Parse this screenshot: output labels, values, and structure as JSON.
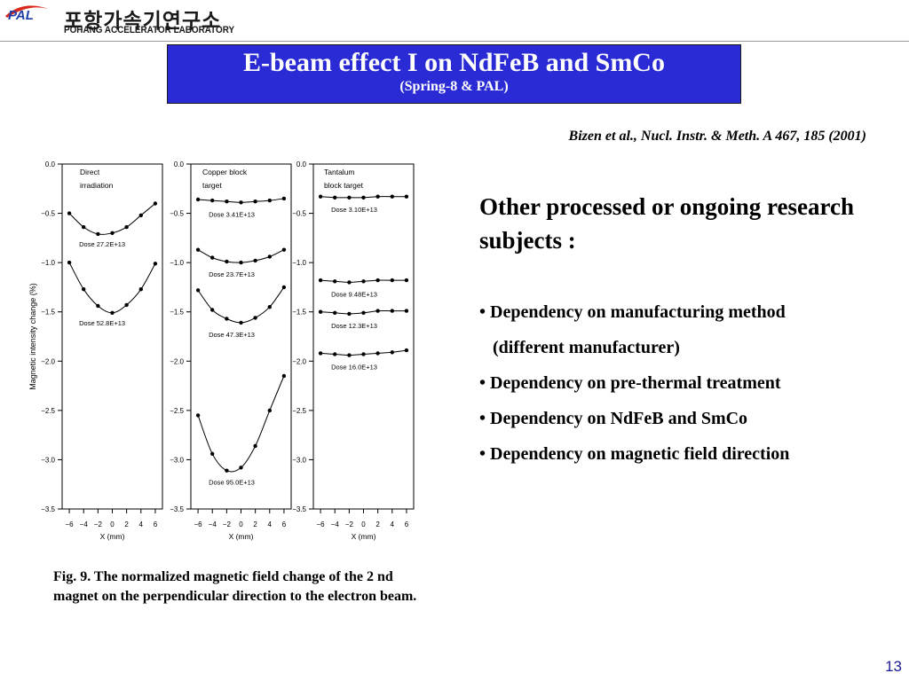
{
  "logo": {
    "mark": "PAL",
    "korean": "포항가속기연구소",
    "english": "POHANG ACCELERATOR LABORATORY"
  },
  "title": {
    "main": "E-beam effect I on NdFeB and SmCo",
    "sub": "(Spring-8 & PAL)"
  },
  "citation": "Bizen et al., Nucl. Instr. & Meth. A 467, 185 (2001)",
  "subjects": {
    "heading": "Other processed or ongoing research subjects :",
    "items": [
      "• Dependency on manufacturing method",
      "   (different manufacturer)",
      "• Dependency on pre-thermal treatment",
      "• Dependency on NdFeB and SmCo",
      "• Dependency on magnetic field direction"
    ]
  },
  "caption": "Fig. 9. The normalized magnetic field change of the 2 nd magnet on the perpendicular direction to the electron beam.",
  "page_number": "13",
  "colors": {
    "title_bg": "#2b2bd6",
    "logo_red": "#d8281e",
    "logo_blue": "#1f3fa8",
    "page_number": "#1a1a9a"
  },
  "chart_data": [
    {
      "type": "line",
      "title": "Direct irradiation",
      "xlabel": "X (mm)",
      "ylabel": "Magnetic intensity change (%)",
      "xlim": [
        -7,
        7
      ],
      "ylim": [
        -3.5,
        0.0
      ],
      "xticks": [
        -6,
        -4,
        -2,
        0,
        2,
        4,
        6
      ],
      "yticks": [
        0.0,
        -0.5,
        -1.0,
        -1.5,
        -2.0,
        -2.5,
        -3.0,
        -3.5
      ],
      "series": [
        {
          "name": "Dose 27.2E+13",
          "x": [
            -6,
            -4,
            -2,
            0,
            2,
            4,
            6
          ],
          "y": [
            -0.5,
            -0.64,
            -0.71,
            -0.7,
            -0.64,
            -0.52,
            -0.4
          ]
        },
        {
          "name": "Dose 52.8E+13",
          "x": [
            -6,
            -4,
            -2,
            0,
            2,
            4,
            6
          ],
          "y": [
            -1.0,
            -1.27,
            -1.44,
            -1.51,
            -1.43,
            -1.27,
            -1.01
          ]
        }
      ]
    },
    {
      "type": "line",
      "title": "Copper block target",
      "xlabel": "X (mm)",
      "ylabel": "",
      "xlim": [
        -7,
        7
      ],
      "ylim": [
        -3.5,
        0.0
      ],
      "xticks": [
        -6,
        -4,
        -2,
        0,
        2,
        4,
        6
      ],
      "yticks": [
        0.0,
        -0.5,
        -1.0,
        -1.5,
        -2.0,
        -2.5,
        -3.0,
        -3.5
      ],
      "series": [
        {
          "name": "Dose 3.41E+13",
          "x": [
            -6,
            -4,
            -2,
            0,
            2,
            4,
            6
          ],
          "y": [
            -0.36,
            -0.37,
            -0.38,
            -0.39,
            -0.38,
            -0.37,
            -0.35
          ]
        },
        {
          "name": "Dose 23.7E+13",
          "x": [
            -6,
            -4,
            -2,
            0,
            2,
            4,
            6
          ],
          "y": [
            -0.87,
            -0.95,
            -0.99,
            -1.0,
            -0.98,
            -0.94,
            -0.87
          ]
        },
        {
          "name": "Dose 47.3E+13",
          "x": [
            -6,
            -4,
            -2,
            0,
            2,
            4,
            6
          ],
          "y": [
            -1.28,
            -1.48,
            -1.57,
            -1.61,
            -1.56,
            -1.45,
            -1.25
          ]
        },
        {
          "name": "Dose 95.0E+13",
          "x": [
            -6,
            -4,
            -2,
            0,
            2,
            4,
            6
          ],
          "y": [
            -2.55,
            -2.94,
            -3.11,
            -3.08,
            -2.86,
            -2.5,
            -2.15
          ]
        }
      ]
    },
    {
      "type": "line",
      "title": "Tantalum block target",
      "xlabel": "X (mm)",
      "ylabel": "",
      "xlim": [
        -7,
        7
      ],
      "ylim": [
        -3.5,
        0.0
      ],
      "xticks": [
        -6,
        -4,
        -2,
        0,
        2,
        4,
        6
      ],
      "yticks": [
        0.0,
        -0.5,
        -1.0,
        -1.5,
        -2.0,
        -2.5,
        -3.0,
        -3.5
      ],
      "series": [
        {
          "name": "Dose 3.10E+13",
          "x": [
            -6,
            -4,
            -2,
            0,
            2,
            4,
            6
          ],
          "y": [
            -0.33,
            -0.34,
            -0.34,
            -0.34,
            -0.33,
            -0.33,
            -0.33
          ]
        },
        {
          "name": "Dose 9.48E+13",
          "x": [
            -6,
            -4,
            -2,
            0,
            2,
            4,
            6
          ],
          "y": [
            -1.18,
            -1.19,
            -1.2,
            -1.19,
            -1.18,
            -1.18,
            -1.18
          ]
        },
        {
          "name": "Dose 12.3E+13",
          "x": [
            -6,
            -4,
            -2,
            0,
            2,
            4,
            6
          ],
          "y": [
            -1.5,
            -1.51,
            -1.52,
            -1.51,
            -1.49,
            -1.49,
            -1.49
          ]
        },
        {
          "name": "Dose 16.0E+13",
          "x": [
            -6,
            -4,
            -2,
            0,
            2,
            4,
            6
          ],
          "y": [
            -1.92,
            -1.93,
            -1.94,
            -1.93,
            -1.92,
            -1.91,
            -1.89
          ]
        }
      ]
    }
  ]
}
